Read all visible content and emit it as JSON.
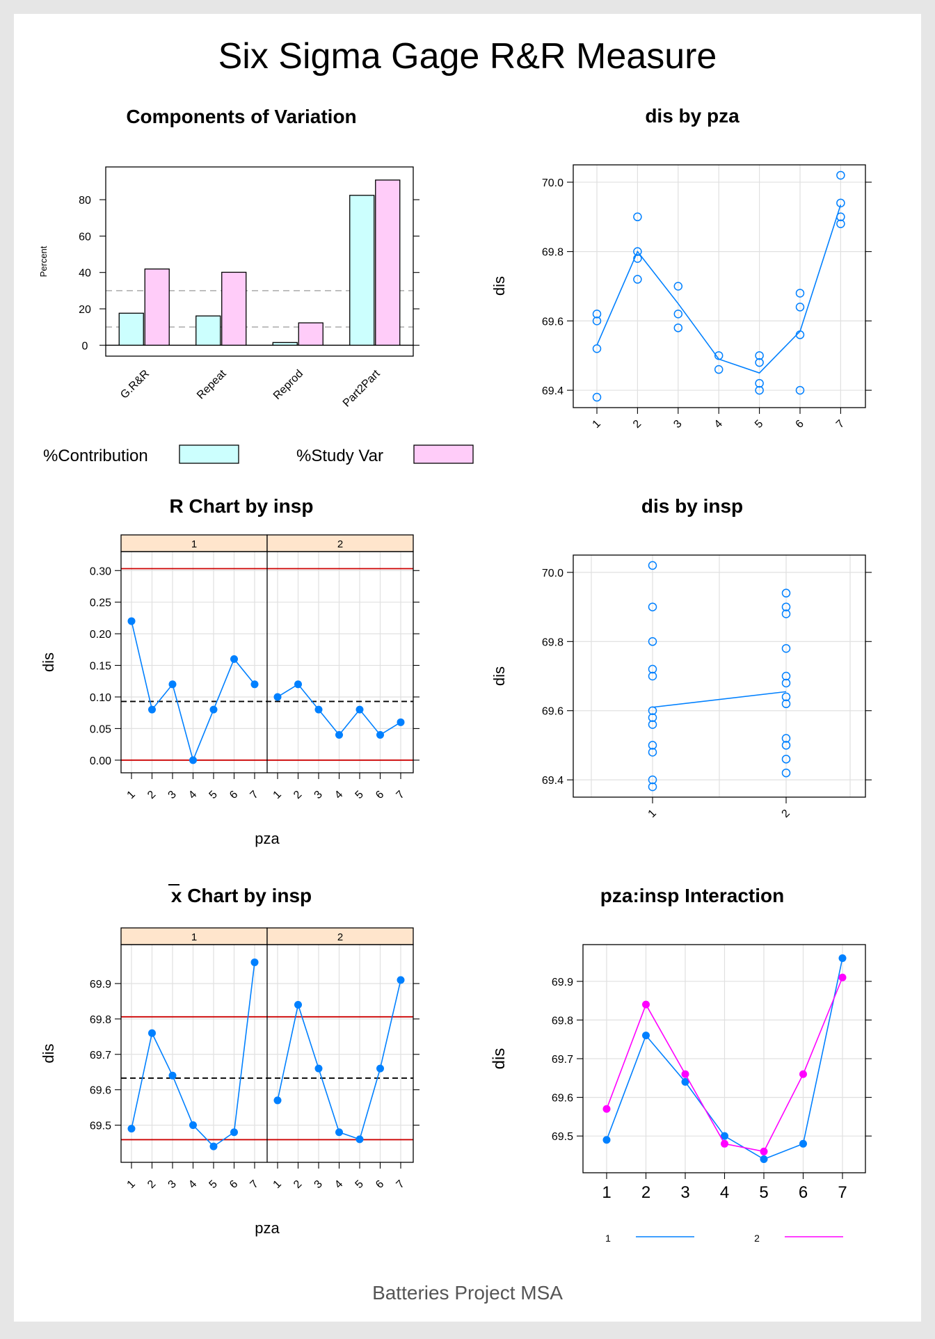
{
  "page": {
    "title": "Six Sigma Gage R&R Measure",
    "footer": "Batteries Project MSA"
  },
  "colors": {
    "contribution": "#ccfffe",
    "study_var": "#ffccf9",
    "series_blue": "#0080ff",
    "series_magenta": "#ff00ff",
    "limit_red": "#cc0000",
    "strip_fill": "#ffe5cc"
  },
  "chart_data": [
    {
      "id": "components",
      "type": "bar",
      "title": "Components of Variation",
      "ylabel": "Percent",
      "categories": [
        "G.R&R",
        "Repeat",
        "Reprod",
        "Part2Part"
      ],
      "series": [
        {
          "name": "%Contribution",
          "values": [
            17.6,
            16.1,
            1.5,
            82.4
          ]
        },
        {
          "name": "%Study Var",
          "values": [
            41.9,
            40.1,
            12.3,
            90.8
          ]
        }
      ],
      "ylim": [
        -6,
        98
      ],
      "yticks": [
        0,
        20,
        40,
        60,
        80
      ],
      "reference_lines": [
        10,
        30
      ],
      "legend": "bottom"
    },
    {
      "id": "dis_by_pza",
      "type": "scatter",
      "title": "dis by pza",
      "xlabel": "",
      "ylabel": "dis",
      "categories": [
        "1",
        "2",
        "3",
        "4",
        "5",
        "6",
        "7"
      ],
      "points": [
        [
          1,
          69.62
        ],
        [
          1,
          69.6
        ],
        [
          1,
          69.52
        ],
        [
          1,
          69.38
        ],
        [
          2,
          69.9
        ],
        [
          2,
          69.8
        ],
        [
          2,
          69.78
        ],
        [
          2,
          69.72
        ],
        [
          3,
          69.7
        ],
        [
          3,
          69.62
        ],
        [
          3,
          69.58
        ],
        [
          4,
          69.5
        ],
        [
          4,
          69.46
        ],
        [
          5,
          69.5
        ],
        [
          5,
          69.48
        ],
        [
          5,
          69.42
        ],
        [
          5,
          69.4
        ],
        [
          6,
          69.68
        ],
        [
          6,
          69.64
        ],
        [
          6,
          69.56
        ],
        [
          6,
          69.4
        ],
        [
          7,
          70.02
        ],
        [
          7,
          69.94
        ],
        [
          7,
          69.9
        ],
        [
          7,
          69.88
        ]
      ],
      "means": [
        69.53,
        69.8,
        69.65,
        69.49,
        69.45,
        69.57,
        69.935
      ],
      "ylim": [
        69.35,
        70.05
      ],
      "yticks": [
        "69.4",
        "69.6",
        "69.8",
        "70.0"
      ]
    },
    {
      "id": "r_chart",
      "type": "line",
      "title": "R Chart by insp",
      "xlabel": "pza",
      "ylabel": "dis",
      "panels": [
        "1",
        "2"
      ],
      "categories": [
        "1",
        "2",
        "3",
        "4",
        "5",
        "6",
        "7"
      ],
      "series": [
        {
          "panel": "1",
          "values": [
            0.22,
            0.08,
            0.12,
            0.0,
            0.08,
            0.16,
            0.12
          ]
        },
        {
          "panel": "2",
          "values": [
            0.1,
            0.12,
            0.08,
            0.04,
            0.08,
            0.04,
            0.06
          ]
        }
      ],
      "center_line": 0.0929,
      "ucl": 0.303,
      "lcl": 0.0,
      "ylim": [
        -0.02,
        0.33
      ],
      "yticks": [
        "0.00",
        "0.05",
        "0.10",
        "0.15",
        "0.20",
        "0.25",
        "0.30"
      ]
    },
    {
      "id": "dis_by_insp",
      "type": "scatter",
      "title": "dis by insp",
      "xlabel": "",
      "ylabel": "dis",
      "categories": [
        "1",
        "2"
      ],
      "points": [
        [
          1,
          70.02
        ],
        [
          1,
          69.9
        ],
        [
          1,
          69.8
        ],
        [
          1,
          69.72
        ],
        [
          1,
          69.7
        ],
        [
          1,
          69.6
        ],
        [
          1,
          69.58
        ],
        [
          1,
          69.56
        ],
        [
          1,
          69.5
        ],
        [
          1,
          69.48
        ],
        [
          1,
          69.4
        ],
        [
          1,
          69.38
        ],
        [
          2,
          69.94
        ],
        [
          2,
          69.9
        ],
        [
          2,
          69.88
        ],
        [
          2,
          69.78
        ],
        [
          2,
          69.7
        ],
        [
          2,
          69.68
        ],
        [
          2,
          69.64
        ],
        [
          2,
          69.62
        ],
        [
          2,
          69.52
        ],
        [
          2,
          69.5
        ],
        [
          2,
          69.46
        ],
        [
          2,
          69.42
        ]
      ],
      "means": [
        69.61,
        69.655
      ],
      "ylim": [
        69.35,
        70.05
      ],
      "yticks": [
        "69.4",
        "69.6",
        "69.8",
        "70.0"
      ]
    },
    {
      "id": "xbar_chart",
      "type": "line",
      "title": "x Chart by insp",
      "xlabel": "pza",
      "ylabel": "dis",
      "panels": [
        "1",
        "2"
      ],
      "categories": [
        "1",
        "2",
        "3",
        "4",
        "5",
        "6",
        "7"
      ],
      "series": [
        {
          "panel": "1",
          "values": [
            69.49,
            69.76,
            69.64,
            69.5,
            69.44,
            69.48,
            69.96
          ]
        },
        {
          "panel": "2",
          "values": [
            69.57,
            69.84,
            69.66,
            69.48,
            69.46,
            69.66,
            69.91
          ]
        }
      ],
      "center_line": 69.6329,
      "ucl": 69.806,
      "lcl": 69.459,
      "ylim": [
        69.395,
        70.01
      ],
      "yticks": [
        "69.5",
        "69.6",
        "69.7",
        "69.8",
        "69.9"
      ]
    },
    {
      "id": "interaction",
      "type": "line",
      "title": "pza:insp Interaction",
      "xlabel": "",
      "ylabel": "dis",
      "categories": [
        "1",
        "2",
        "3",
        "4",
        "5",
        "6",
        "7"
      ],
      "series": [
        {
          "name": "1",
          "values": [
            69.49,
            69.76,
            69.64,
            69.5,
            69.44,
            69.48,
            69.96
          ]
        },
        {
          "name": "2",
          "values": [
            69.57,
            69.84,
            69.66,
            69.48,
            69.46,
            69.66,
            69.91
          ]
        }
      ],
      "ylim": [
        69.405,
        69.995
      ],
      "yticks": [
        "69.5",
        "69.6",
        "69.7",
        "69.8",
        "69.9"
      ],
      "legend": "bottom"
    }
  ]
}
